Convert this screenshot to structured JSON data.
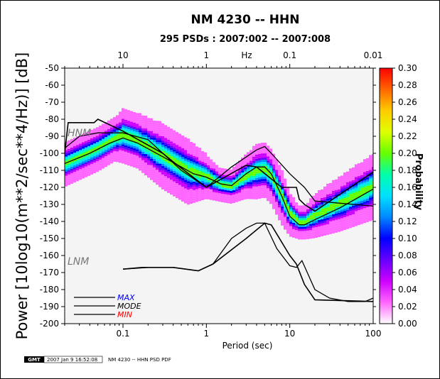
{
  "window": {
    "border_color": "#000000"
  },
  "chart_data": {
    "type": "heatmap",
    "title": "NM 4230 -- HHN",
    "subtitle": "295 PSDs : 2007:002 -- 2007:008",
    "xlabel": "Period (sec)",
    "ylabel": "Power [10log10(m**2/sec**4/Hz)] [dB]",
    "x_scale": "log",
    "xlim": [
      0.02,
      100
    ],
    "ylim": [
      -200,
      -50
    ],
    "x_ticks": [
      "0.1",
      "1",
      "10",
      "100"
    ],
    "x_tick_values": [
      0.1,
      1,
      10,
      100
    ],
    "top_axis_label": "Hz",
    "top_ticks": [
      "10",
      "1",
      "0.1",
      "0.01"
    ],
    "top_tick_values": [
      0.1,
      1,
      10,
      100
    ],
    "y_ticks": [
      "-50",
      "-60",
      "-70",
      "-80",
      "-90",
      "-100",
      "-110",
      "-120",
      "-130",
      "-140",
      "-150",
      "-160",
      "-170",
      "-180",
      "-190",
      "-200"
    ],
    "y_tick_values": [
      -50,
      -60,
      -70,
      -80,
      -90,
      -100,
      -110,
      -120,
      -130,
      -140,
      -150,
      -160,
      -170,
      -180,
      -190,
      -200
    ],
    "colorbar": {
      "label": "Probability",
      "range": [
        0.0,
        0.3
      ],
      "ticks": [
        "0.30",
        "0.28",
        "0.26",
        "0.24",
        "0.22",
        "0.20",
        "0.18",
        "0.16",
        "0.14",
        "0.12",
        "0.10",
        "0.08",
        "0.06",
        "0.04",
        "0.02",
        "0.00"
      ],
      "tick_values": [
        0.3,
        0.28,
        0.26,
        0.24,
        0.22,
        0.2,
        0.18,
        0.16,
        0.14,
        0.12,
        0.1,
        0.08,
        0.06,
        0.04,
        0.02,
        0.0
      ],
      "colors": [
        "#ffffff",
        "#ff66ff",
        "#cc00ff",
        "#6600ff",
        "#0000ff",
        "#0088ff",
        "#00e0ff",
        "#00ffaa",
        "#66ff00",
        "#e0ff00",
        "#ffcc00",
        "#ff6600",
        "#ff0000"
      ]
    },
    "density_band": {
      "period": [
        0.02,
        0.05,
        0.08,
        0.1,
        0.15,
        0.3,
        0.6,
        1,
        1.5,
        2,
        3,
        4,
        5,
        6,
        8,
        10,
        13,
        15,
        20,
        40,
        100
      ],
      "center": [
        -107,
        -98,
        -92,
        -90,
        -93,
        -102,
        -111,
        -114,
        -119,
        -120,
        -114,
        -111,
        -110,
        -114,
        -126,
        -136,
        -141,
        -141,
        -137,
        -130,
        -120
      ],
      "spread": [
        4,
        4,
        4,
        5,
        5,
        6,
        6,
        4,
        3,
        3,
        4,
        5,
        5,
        5,
        5,
        4,
        3,
        3,
        4,
        5,
        6
      ]
    },
    "series": [
      {
        "name": "MAX",
        "legend_color": "#0000ff",
        "x": [
          0.02,
          0.03,
          0.05,
          0.1,
          0.2,
          0.5,
          1,
          2,
          4,
          5,
          6,
          10,
          15,
          20,
          100
        ],
        "y": [
          -97,
          -90,
          -88,
          -88,
          -92,
          -110,
          -120,
          -108,
          -98,
          -96,
          -100,
          -112,
          -120,
          -128,
          -131
        ]
      },
      {
        "name": "MODE",
        "legend_color": "#000000",
        "x": [
          0.02,
          0.04,
          0.07,
          0.1,
          0.15,
          0.3,
          0.5,
          0.7,
          1,
          1.5,
          2,
          3,
          4,
          5,
          6,
          8,
          10,
          13,
          15,
          20,
          40,
          100
        ],
        "y": [
          -106,
          -100,
          -94,
          -91,
          -94,
          -102,
          -108,
          -112,
          -114,
          -118,
          -119,
          -112,
          -108,
          -108,
          -112,
          -125,
          -137,
          -142,
          -142,
          -139,
          -132,
          -121
        ]
      },
      {
        "name": "MIN",
        "legend_color": "#ff0000",
        "x": [
          0.1,
          0.2,
          0.4,
          0.8,
          1.2,
          2,
          3,
          4,
          5,
          7,
          10,
          12,
          14,
          20,
          30,
          50,
          80,
          100
        ],
        "y": [
          -168,
          -167,
          -167,
          -169,
          -165,
          -150,
          -144,
          -141,
          -141,
          -156,
          -166,
          -167,
          -163,
          -180,
          -185,
          -187,
          -187,
          -185
        ]
      }
    ],
    "reference_models": [
      {
        "name": "HNM",
        "x": [
          0.02,
          0.022,
          0.025,
          0.045,
          0.05,
          0.1,
          0.3,
          0.4,
          1,
          3,
          4,
          8,
          12,
          13,
          15,
          20,
          100
        ],
        "y": [
          -100,
          -82,
          -82,
          -82,
          -80,
          -87,
          -100,
          -105,
          -120,
          -107,
          -108,
          -120,
          -120,
          -127,
          -130,
          -134,
          -111
        ]
      },
      {
        "name": "LNM",
        "x": [
          0.1,
          0.17,
          0.4,
          0.8,
          1.2,
          3,
          5,
          6,
          10,
          12,
          15,
          20,
          100
        ],
        "y": [
          -168,
          -167,
          -167,
          -169,
          -165,
          -150,
          -141,
          -142,
          -160,
          -165,
          -177,
          -186,
          -187
        ]
      }
    ],
    "annotations": [
      "HNM",
      "LNM"
    ]
  },
  "footer": {
    "logo": "GMT",
    "timestamp": "2007 Jan  9 16:52:08",
    "caption": "NM 4230 -- HHN PSD PDF"
  }
}
